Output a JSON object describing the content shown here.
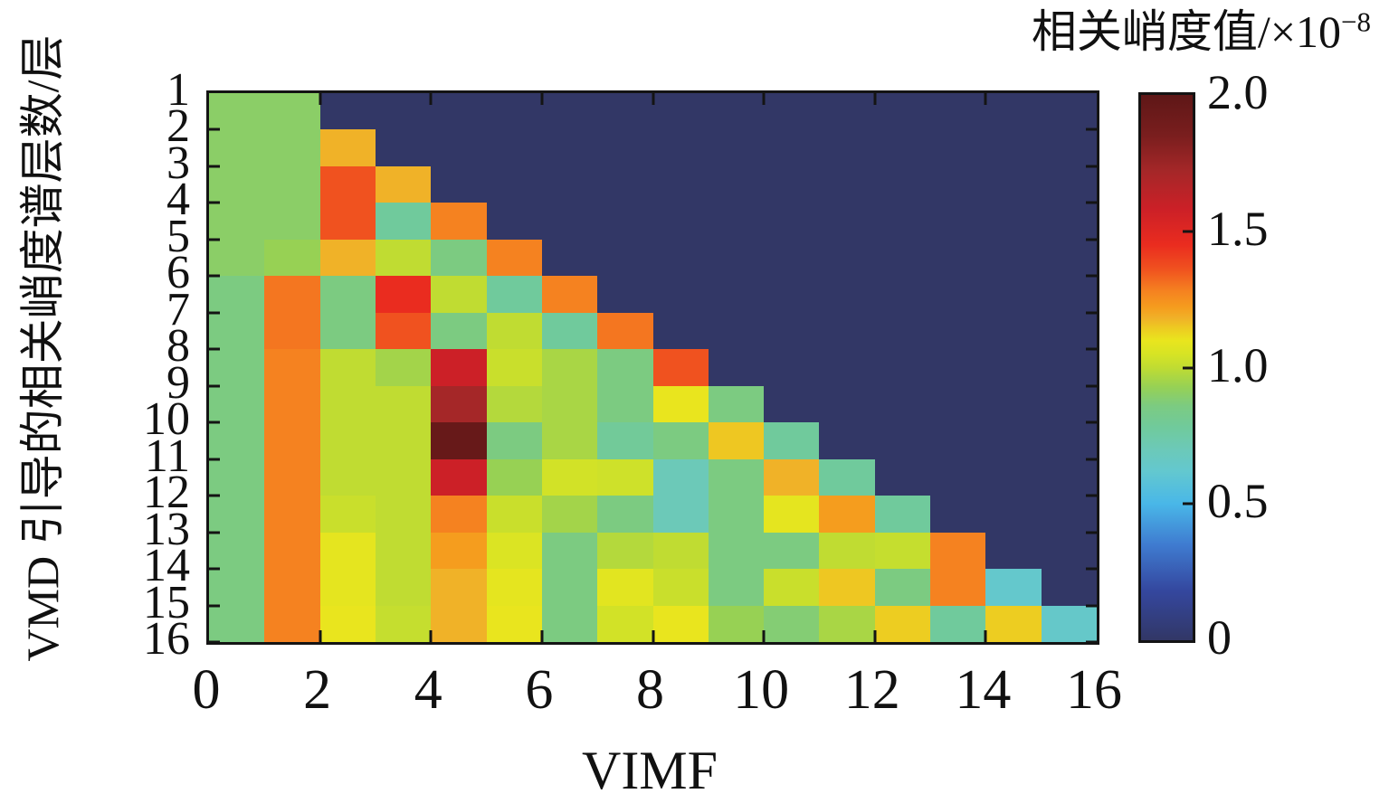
{
  "figure": {
    "x_title": "VIMF",
    "y_title": "VMD 引导的相关峭度谱层数/层",
    "colorbar_title_main": "相关峭度值/×10",
    "colorbar_title_sup": "−8",
    "x_tick_labels": [
      "0",
      "2",
      "4",
      "6",
      "8",
      "10",
      "12",
      "14",
      "16"
    ],
    "y_tick_labels": [
      "1",
      "2",
      "3",
      "4",
      "5",
      "6",
      "7",
      "8",
      "9",
      "10",
      "11",
      "12",
      "13",
      "14",
      "15",
      "16"
    ],
    "colorbar_tick_labels": [
      "2.0",
      "1.5",
      "1.0",
      "0.5",
      "0"
    ]
  },
  "chart_data": {
    "type": "heatmap",
    "title": "相关峭度值/×10⁻⁸",
    "xlabel": "VIMF",
    "ylabel": "VMD 引导的相关峭度谱层数/层",
    "value_label": "相关峭度值/×10⁻⁸",
    "unit_scale": "1e-8",
    "x_edges": [
      0,
      1,
      2,
      3,
      4,
      5,
      6,
      7,
      8,
      9,
      10,
      11,
      12,
      13,
      14,
      15,
      16
    ],
    "y_edges": [
      1,
      2,
      3,
      4,
      5,
      6,
      7,
      8,
      9,
      10,
      11,
      12,
      13,
      14,
      15,
      16
    ],
    "x_axis_ticks": [
      0,
      2,
      4,
      6,
      8,
      10,
      12,
      14,
      16
    ],
    "grid": false,
    "background_value": 0,
    "note": "15 row bands (between y edges 1..16) x 16 columns; upper-right triangle equals background value 0",
    "values": [
      [
        0.9,
        0.9,
        0,
        0,
        0,
        0,
        0,
        0,
        0,
        0,
        0,
        0,
        0,
        0,
        0,
        0
      ],
      [
        0.9,
        0.9,
        1.18,
        0,
        0,
        0,
        0,
        0,
        0,
        0,
        0,
        0,
        0,
        0,
        0,
        0
      ],
      [
        0.9,
        0.9,
        1.36,
        1.18,
        0,
        0,
        0,
        0,
        0,
        0,
        0,
        0,
        0,
        0,
        0,
        0
      ],
      [
        0.9,
        0.9,
        1.36,
        0.78,
        1.28,
        0,
        0,
        0,
        0,
        0,
        0,
        0,
        0,
        0,
        0,
        0
      ],
      [
        0.9,
        0.93,
        1.18,
        1.0,
        0.86,
        1.28,
        0,
        0,
        0,
        0,
        0,
        0,
        0,
        0,
        0,
        0
      ],
      [
        0.86,
        1.3,
        0.86,
        1.45,
        1.0,
        0.78,
        1.28,
        0,
        0,
        0,
        0,
        0,
        0,
        0,
        0,
        0
      ],
      [
        0.86,
        1.3,
        0.86,
        1.36,
        0.86,
        1.0,
        0.78,
        1.3,
        0,
        0,
        0,
        0,
        0,
        0,
        0,
        0
      ],
      [
        0.86,
        1.28,
        1.0,
        0.95,
        1.58,
        1.02,
        0.96,
        0.86,
        1.36,
        0,
        0,
        0,
        0,
        0,
        0,
        0
      ],
      [
        0.86,
        1.28,
        1.0,
        1.0,
        1.72,
        0.98,
        0.96,
        0.86,
        1.1,
        0.86,
        0,
        0,
        0,
        0,
        0,
        0
      ],
      [
        0.86,
        1.28,
        1.0,
        1.0,
        1.95,
        0.86,
        0.96,
        0.79,
        0.86,
        1.15,
        0.78,
        0,
        0,
        0,
        0,
        0
      ],
      [
        0.86,
        1.28,
        1.0,
        1.0,
        1.58,
        0.93,
        1.04,
        1.03,
        0.7,
        0.86,
        1.18,
        0.78,
        0,
        0,
        0,
        0
      ],
      [
        0.86,
        1.28,
        1.02,
        1.0,
        1.28,
        1.02,
        0.95,
        0.86,
        0.7,
        0.86,
        1.09,
        1.22,
        0.78,
        0,
        0,
        0
      ],
      [
        0.86,
        1.28,
        1.09,
        1.0,
        1.22,
        1.06,
        0.86,
        0.98,
        1.0,
        0.86,
        0.86,
        1.0,
        1.01,
        1.28,
        0,
        0
      ],
      [
        0.86,
        1.28,
        1.09,
        1.0,
        1.18,
        1.09,
        0.86,
        1.08,
        1.02,
        0.86,
        1.02,
        1.15,
        0.86,
        1.28,
        0.63,
        0
      ],
      [
        0.86,
        1.28,
        1.1,
        1.01,
        1.18,
        1.1,
        0.86,
        1.04,
        1.1,
        0.93,
        0.88,
        0.96,
        1.14,
        0.78,
        1.14,
        0.64
      ]
    ],
    "colorbar": {
      "min": 0,
      "max": 2,
      "ticks": [
        0,
        0.5,
        1.0,
        1.5,
        2.0
      ],
      "position": "right"
    },
    "colormap_stops": [
      {
        "v": 0.0,
        "color": "#323766"
      },
      {
        "v": 0.18,
        "color": "#34479E"
      },
      {
        "v": 0.35,
        "color": "#3F7BD0"
      },
      {
        "v": 0.5,
        "color": "#49B7E8"
      },
      {
        "v": 0.62,
        "color": "#63C8CF"
      },
      {
        "v": 0.7,
        "color": "#6CC9B8"
      },
      {
        "v": 0.78,
        "color": "#70CA9C"
      },
      {
        "v": 0.86,
        "color": "#7CCB81"
      },
      {
        "v": 0.93,
        "color": "#97D154"
      },
      {
        "v": 1.0,
        "color": "#C0DC32"
      },
      {
        "v": 1.05,
        "color": "#D7E424"
      },
      {
        "v": 1.1,
        "color": "#E9E51E"
      },
      {
        "v": 1.15,
        "color": "#EEC722"
      },
      {
        "v": 1.18,
        "color": "#F0B228"
      },
      {
        "v": 1.22,
        "color": "#F59D1E"
      },
      {
        "v": 1.28,
        "color": "#F58220"
      },
      {
        "v": 1.36,
        "color": "#F0521F"
      },
      {
        "v": 1.45,
        "color": "#EA2C1F"
      },
      {
        "v": 1.58,
        "color": "#CC2027"
      },
      {
        "v": 1.72,
        "color": "#A52728"
      },
      {
        "v": 1.85,
        "color": "#7A1E1E"
      },
      {
        "v": 2.0,
        "color": "#5E1717"
      }
    ]
  }
}
